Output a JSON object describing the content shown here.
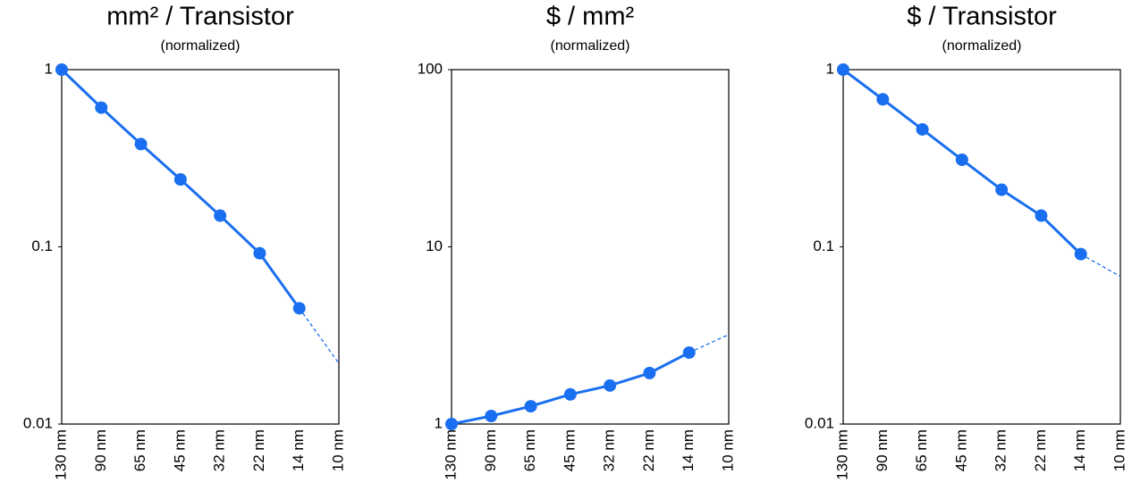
{
  "chart_data": [
    {
      "type": "line",
      "title": "mm² / Transistor",
      "subtitle": "(normalized)",
      "categories": [
        "130 nm",
        "90 nm",
        "65 nm",
        "45 nm",
        "32 nm",
        "22 nm",
        "14 nm",
        "10 nm"
      ],
      "series": [
        {
          "color": "#1a6ff0",
          "values": [
            1,
            0.61,
            0.38,
            0.24,
            0.15,
            0.092,
            0.045,
            0.022
          ],
          "dashed_last_segment": true
        }
      ],
      "ylim": [
        0.01,
        1
      ],
      "yticks": [
        0.01,
        0.1,
        1
      ],
      "log_scale": true,
      "grid": false
    },
    {
      "type": "line",
      "title": "$ / mm²",
      "subtitle": "(normalized)",
      "categories": [
        "130 nm",
        "90 nm",
        "65 nm",
        "45 nm",
        "32 nm",
        "22 nm",
        "14 nm",
        "10 nm"
      ],
      "series": [
        {
          "color": "#1a6ff0",
          "values": [
            1,
            1.11,
            1.26,
            1.47,
            1.65,
            1.94,
            2.53,
            3.2
          ],
          "dashed_last_segment": true
        }
      ],
      "ylim": [
        1,
        100
      ],
      "yticks": [
        1,
        10,
        100
      ],
      "log_scale": true,
      "grid": false
    },
    {
      "type": "line",
      "title": "$ / Transistor",
      "subtitle": "(normalized)",
      "categories": [
        "130 nm",
        "90 nm",
        "65 nm",
        "45 nm",
        "32 nm",
        "22 nm",
        "14 nm",
        "10 nm"
      ],
      "series": [
        {
          "color": "#1a6ff0",
          "values": [
            1,
            0.68,
            0.46,
            0.31,
            0.21,
            0.15,
            0.091,
            0.068
          ],
          "dashed_last_segment": true
        }
      ],
      "ylim": [
        0.01,
        1
      ],
      "yticks": [
        0.01,
        0.1,
        1
      ],
      "log_scale": true,
      "grid": false
    }
  ]
}
